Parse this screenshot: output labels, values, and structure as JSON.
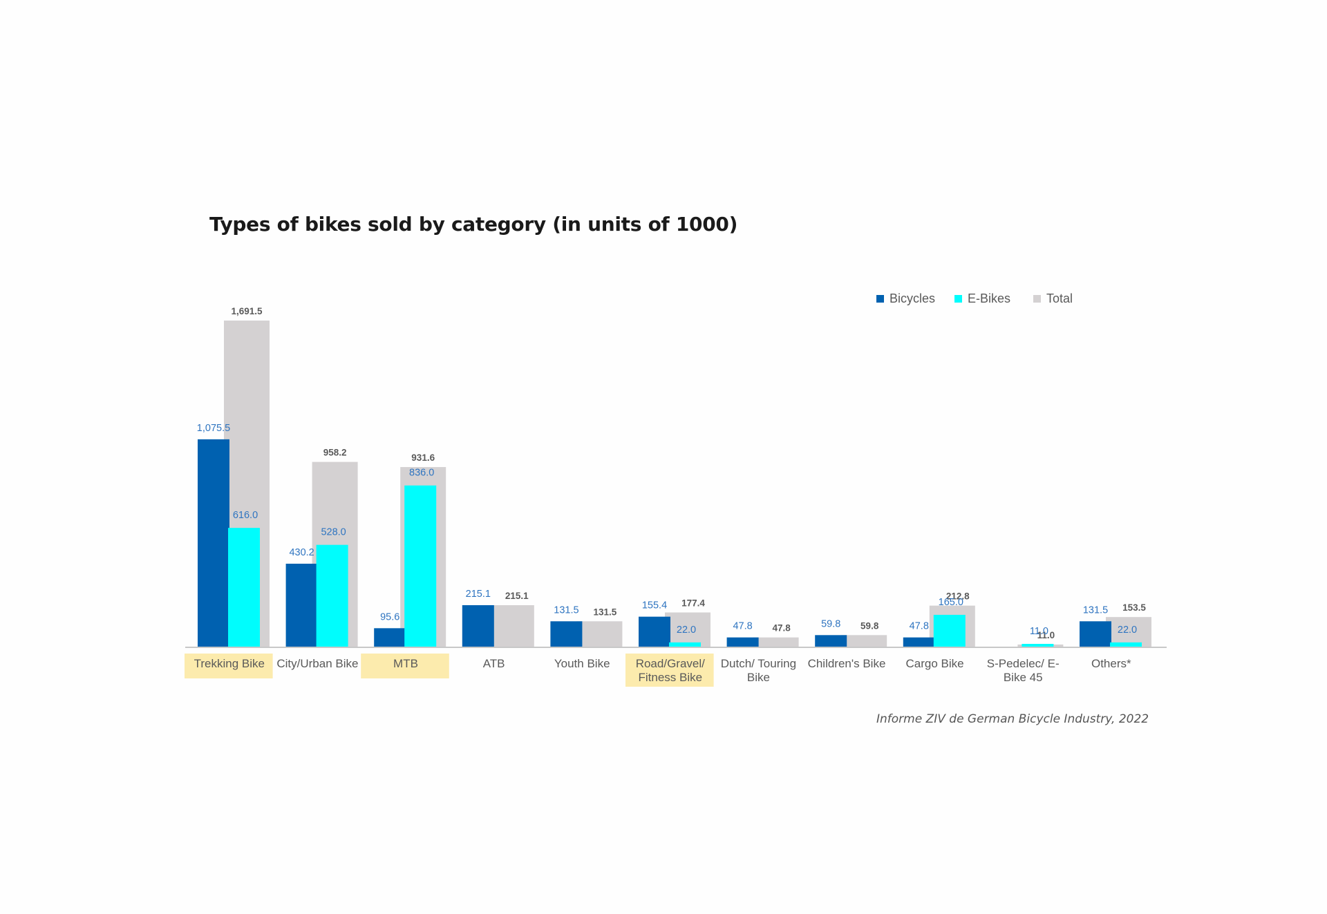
{
  "title": "Types of bikes sold by category (in units of 1000)",
  "source": "Informe ZIV de German Bicycle Industry, 2022",
  "colors": {
    "bicycles": "#0061b0",
    "ebikes": "#00fdfd",
    "total": "#d4d1d2",
    "highlight": "#fcebad"
  },
  "chart_data": {
    "type": "bar",
    "title": "Types of bikes sold by category (in units of 1000)",
    "legend_position": "top-right",
    "categories": [
      [
        "Trekking Bike"
      ],
      [
        "City/Urban Bike"
      ],
      [
        "MTB"
      ],
      [
        "ATB"
      ],
      [
        "Youth Bike"
      ],
      [
        "Road/Gravel/",
        "Fitness Bike"
      ],
      [
        "Dutch/ Touring",
        "Bike"
      ],
      [
        "Children's Bike"
      ],
      [
        "Cargo Bike"
      ],
      [
        "S-Pedelec/ E-",
        "Bike 45"
      ],
      [
        "Others*"
      ]
    ],
    "highlighted_categories": [
      0,
      2,
      5
    ],
    "series": [
      {
        "name": "Bicycles",
        "values": [
          1075.5,
          430.2,
          95.6,
          215.1,
          131.5,
          155.4,
          47.8,
          59.8,
          47.8,
          null,
          131.5
        ],
        "labels": [
          "1,075.5",
          "430.2",
          "95.6",
          "215.1",
          "131.5",
          "155.4",
          "47.8",
          "59.8",
          "47.8",
          "",
          "131.5"
        ]
      },
      {
        "name": "E-Bikes",
        "values": [
          616.0,
          528.0,
          836.0,
          null,
          null,
          22.0,
          null,
          null,
          165.0,
          11.0,
          22.0
        ],
        "labels": [
          "616.0",
          "528.0",
          "836.0",
          "",
          "",
          "22.0",
          "",
          "",
          "165.0",
          "11.0",
          "22.0"
        ]
      },
      {
        "name": "Total",
        "values": [
          1691.5,
          958.2,
          931.6,
          215.1,
          131.5,
          177.4,
          47.8,
          59.8,
          212.8,
          11.0,
          153.5
        ],
        "labels": [
          "1,691.5",
          "958.2",
          "931.6",
          "215.1",
          "131.5",
          "177.4",
          "47.8",
          "59.8",
          "212.8",
          "11.0",
          "153.5"
        ]
      }
    ],
    "ylim": [
      0,
      1691.5
    ],
    "grid": false
  }
}
